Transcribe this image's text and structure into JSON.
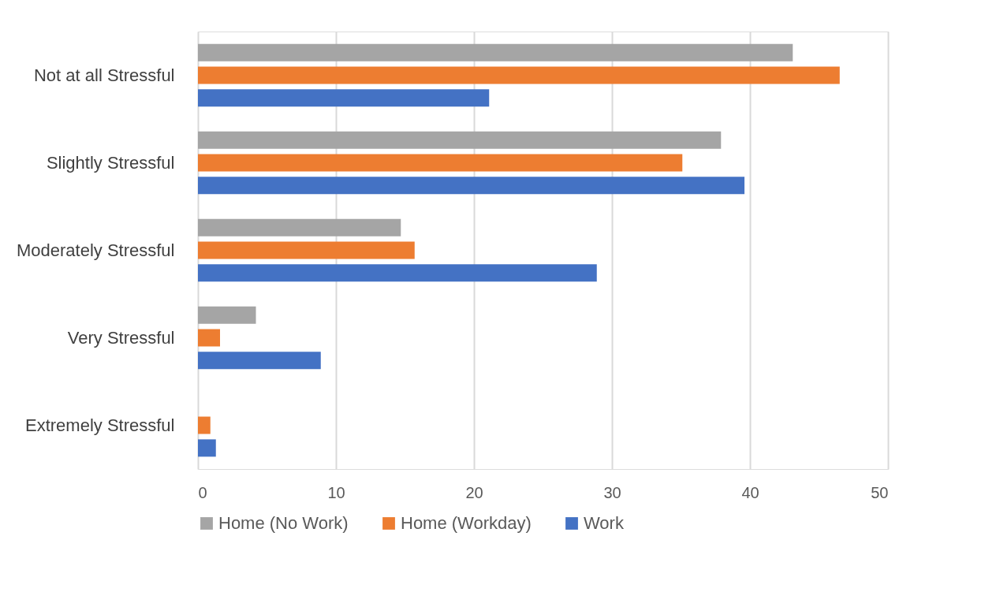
{
  "chart_data": {
    "type": "bar",
    "orientation": "horizontal",
    "categories": [
      "Not at all Stressful",
      "Slightly Stressful",
      "Moderately Stressful",
      "Very Stressful",
      "Extremely Stressful"
    ],
    "series": [
      {
        "name": "Home (No Work)",
        "color": "#a5a5a5",
        "values": [
          43.1,
          37.9,
          14.7,
          4.2,
          0
        ]
      },
      {
        "name": "Home (Workday)",
        "color": "#ed7d31",
        "values": [
          46.5,
          35.1,
          15.7,
          1.6,
          0.9
        ]
      },
      {
        "name": "Work",
        "color": "#4472c4",
        "values": [
          21.1,
          39.6,
          28.9,
          8.9,
          1.3
        ]
      }
    ],
    "xlim": [
      0,
      50
    ],
    "xticks": [
      0,
      10,
      20,
      30,
      40,
      50
    ],
    "grid": "x",
    "legend": "bottom"
  }
}
